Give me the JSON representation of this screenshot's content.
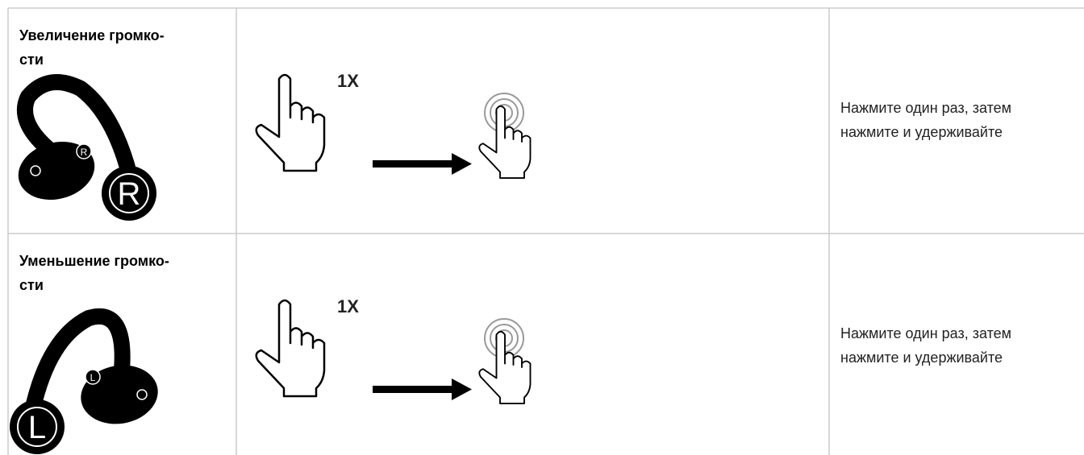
{
  "table": {
    "rows": [
      {
        "title": [
          "Увеличение громко-",
          "сти"
        ],
        "badge": "R",
        "gesture": "1X",
        "description": [
          "Нажмите один раз, затем",
          "нажмите и удерживайте"
        ]
      },
      {
        "title": [
          "Уменьшение громко-",
          "сти"
        ],
        "badge": "L",
        "gesture": "1X",
        "description": [
          "Нажмите один раз, затем",
          "нажмите и удерживайте"
        ]
      }
    ]
  }
}
